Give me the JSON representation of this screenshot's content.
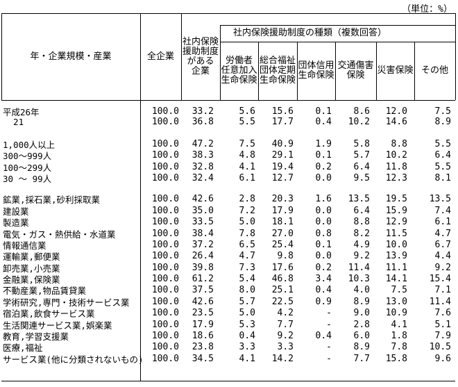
{
  "unit_note": "（単位：%）",
  "table": {
    "header": {
      "row_label": "年・企業規模・産業",
      "col_all": "全企業",
      "col_has_system": "社内保険\n援助制度\nがある\n企業",
      "group_title": "社内保険援助制度の種類（複数回答）",
      "sub_columns": [
        "労働者\n任意加入\n生命保険",
        "総合福祉\n団体定期\n生命保険",
        "団体信用\n生命保険",
        "交通傷害\n保険",
        "災害保険",
        "その他"
      ]
    },
    "rows": [
      {
        "label": "平成26年",
        "values": [
          "100.0",
          "33.2",
          "5.6",
          "15.6",
          "0.1",
          "8.6",
          "12.0",
          "7.5"
        ]
      },
      {
        "label": "  21",
        "values": [
          "100.0",
          "36.8",
          "5.5",
          "17.7",
          "0.4",
          "10.2",
          "14.6",
          "8.9"
        ]
      },
      {
        "spacer": true
      },
      {
        "label": "1,000人以上",
        "values": [
          "100.0",
          "47.2",
          "7.5",
          "40.9",
          "1.9",
          "5.8",
          "8.8",
          "5.5"
        ]
      },
      {
        "label": "300～999人",
        "values": [
          "100.0",
          "38.3",
          "4.8",
          "29.1",
          "0.1",
          "5.7",
          "10.2",
          "6.4"
        ]
      },
      {
        "label": "100～299人",
        "values": [
          "100.0",
          "32.8",
          "4.1",
          "19.4",
          "0.2",
          "6.4",
          "11.8",
          "5.5"
        ]
      },
      {
        "label": "30 ～ 99人",
        "values": [
          "100.0",
          "32.4",
          "6.1",
          "12.7",
          "0.0",
          "9.5",
          "12.3",
          "8.1"
        ]
      },
      {
        "spacer": true
      },
      {
        "label": "鉱業,採石業,砂利採取業",
        "values": [
          "100.0",
          "42.6",
          "2.8",
          "20.3",
          "1.6",
          "13.5",
          "19.5",
          "13.5"
        ]
      },
      {
        "label": "建設業",
        "values": [
          "100.0",
          "35.0",
          "7.2",
          "17.9",
          "0.0",
          "6.4",
          "15.9",
          "7.4"
        ]
      },
      {
        "label": "製造業",
        "values": [
          "100.0",
          "33.5",
          "5.0",
          "18.1",
          "0.0",
          "8.8",
          "12.9",
          "6.1"
        ]
      },
      {
        "label": "電気・ガス・熱供給・水道業",
        "values": [
          "100.0",
          "38.4",
          "7.8",
          "27.0",
          "0.8",
          "8.2",
          "11.5",
          "4.7"
        ]
      },
      {
        "label": "情報通信業",
        "values": [
          "100.0",
          "37.2",
          "6.5",
          "25.4",
          "0.1",
          "4.9",
          "10.0",
          "6.7"
        ]
      },
      {
        "label": "運輸業,郵便業",
        "values": [
          "100.0",
          "26.4",
          "4.7",
          "9.8",
          "0.0",
          "9.2",
          "13.9",
          "4.4"
        ]
      },
      {
        "label": "卸売業,小売業",
        "values": [
          "100.0",
          "39.8",
          "7.3",
          "17.6",
          "0.2",
          "11.4",
          "11.1",
          "9.2"
        ]
      },
      {
        "label": "金融業,保険業",
        "values": [
          "100.0",
          "61.2",
          "5.4",
          "46.8",
          "3.4",
          "10.3",
          "14.1",
          "15.4"
        ]
      },
      {
        "label": "不動産業,物品賃貸業",
        "values": [
          "100.0",
          "37.5",
          "8.0",
          "25.1",
          "0.4",
          "4.0",
          "7.5",
          "7.1"
        ]
      },
      {
        "label": "学術研究,専門・技術サービス業",
        "values": [
          "100.0",
          "42.6",
          "5.7",
          "22.5",
          "0.9",
          "8.9",
          "13.0",
          "11.4"
        ]
      },
      {
        "label": "宿泊業,飲食サービス業",
        "values": [
          "100.0",
          "23.5",
          "5.0",
          "4.2",
          "-",
          "9.0",
          "10.9",
          "7.6"
        ]
      },
      {
        "label": "生活関連サービス業,娯楽業",
        "values": [
          "100.0",
          "17.9",
          "5.3",
          "7.7",
          "-",
          "2.8",
          "4.1",
          "5.1"
        ]
      },
      {
        "label": "教育,学習支援業",
        "values": [
          "100.0",
          "18.6",
          "0.4",
          "9.2",
          "0.4",
          "6.0",
          "1.8",
          "7.9"
        ]
      },
      {
        "label": "医療,福祉",
        "values": [
          "100.0",
          "23.8",
          "3.3",
          "3.3",
          "-",
          "8.9",
          "7.8",
          "10.5"
        ]
      },
      {
        "label": "サービス業(他に分類されないもの)",
        "values": [
          "100.0",
          "34.5",
          "4.1",
          "14.2",
          "-",
          "7.7",
          "15.8",
          "9.6"
        ]
      }
    ]
  }
}
